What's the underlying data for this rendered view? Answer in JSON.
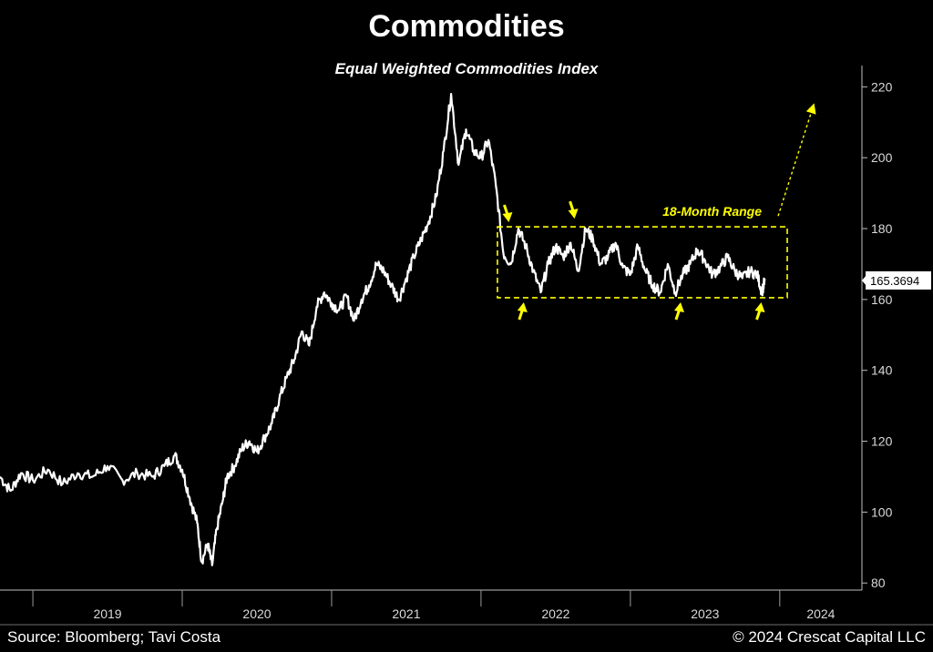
{
  "header": {
    "title": "Commodities",
    "subtitle": "Equal Weighted Commodities Index"
  },
  "footer": {
    "source": "Source: Bloomberg; Tavi Costa",
    "copyright": "© 2024 Crescat Capital LLC"
  },
  "colors": {
    "background": "#000000",
    "line": "#ffffff",
    "annotation": "#ffff00"
  },
  "chart_data": {
    "type": "line",
    "title": "Commodities",
    "subtitle": "Equal Weighted Commodities Index",
    "xlabel": "",
    "ylabel": "",
    "ylim": [
      78,
      226
    ],
    "xlim": [
      2018.78,
      2024.55
    ],
    "y_ticks": [
      80,
      100,
      120,
      140,
      160,
      180,
      200,
      220
    ],
    "x_tick_labels": [
      "2019",
      "2020",
      "2021",
      "2022",
      "2023",
      "2024"
    ],
    "grid": false,
    "y_axis_side": "right",
    "last_value_label": "165.3694",
    "series": [
      {
        "x": [
          2018.78,
          2018.85,
          2018.92,
          2019.0,
          2019.1,
          2019.2,
          2019.3,
          2019.4,
          2019.5,
          2019.6,
          2019.7,
          2019.8,
          2019.88,
          2019.95,
          2020.0,
          2020.05,
          2020.1,
          2020.13,
          2020.17,
          2020.2,
          2020.23,
          2020.27,
          2020.3,
          2020.35,
          2020.4,
          2020.45,
          2020.5,
          2020.55,
          2020.6,
          2020.65,
          2020.7,
          2020.75,
          2020.8,
          2020.85,
          2020.9,
          2020.95,
          2021.0,
          2021.05,
          2021.1,
          2021.15,
          2021.2,
          2021.25,
          2021.3,
          2021.35,
          2021.4,
          2021.45,
          2021.5,
          2021.55,
          2021.6,
          2021.65,
          2021.7,
          2021.75,
          2021.8,
          2021.85,
          2021.9,
          2021.95,
          2022.0,
          2022.05,
          2022.1,
          2022.15,
          2022.2,
          2022.25,
          2022.3,
          2022.35,
          2022.4,
          2022.45,
          2022.5,
          2022.55,
          2022.6,
          2022.65,
          2022.7,
          2022.75,
          2022.8,
          2022.85,
          2022.9,
          2022.95,
          2023.0,
          2023.05,
          2023.1,
          2023.15,
          2023.2,
          2023.25,
          2023.3,
          2023.35,
          2023.4,
          2023.45,
          2023.5,
          2023.55,
          2023.6,
          2023.65,
          2023.7,
          2023.75,
          2023.8,
          2023.85,
          2023.88,
          2023.9
        ],
        "values": [
          110,
          106,
          111,
          109,
          112,
          108,
          111,
          110,
          113,
          109,
          111,
          110,
          113,
          116,
          112,
          104,
          97,
          86,
          91,
          85,
          95,
          103,
          110,
          113,
          118,
          120,
          117,
          121,
          125,
          132,
          138,
          143,
          151,
          147,
          158,
          162,
          159,
          157,
          161,
          154,
          160,
          164,
          170,
          168,
          164,
          160,
          166,
          172,
          177,
          182,
          189,
          202,
          218,
          198,
          208,
          202,
          200,
          205,
          192,
          173,
          170,
          180,
          175,
          168,
          162,
          170,
          175,
          172,
          176,
          168,
          180,
          177,
          170,
          172,
          176,
          169,
          167,
          175,
          168,
          164,
          162,
          170,
          162,
          167,
          170,
          174,
          171,
          167,
          169,
          172,
          168,
          166,
          168,
          167,
          162,
          165.37
        ]
      }
    ],
    "annotations": {
      "range_label": "18-Month Range",
      "range_box": {
        "x_start": 2022.11,
        "x_end": 2024.05,
        "y_low": 160.5,
        "y_high": 180.5
      },
      "down_arrows": [
        {
          "x": 2022.18,
          "y": 180
        },
        {
          "x": 2022.62,
          "y": 181
        }
      ],
      "up_arrows": [
        {
          "x": 2022.28,
          "y": 161
        },
        {
          "x": 2023.33,
          "y": 161
        },
        {
          "x": 2023.87,
          "y": 161
        }
      ],
      "trend_arrow": {
        "x_start": 2024.05,
        "y_start": 182,
        "x_end": 2024.22,
        "y_end": 214
      }
    }
  }
}
